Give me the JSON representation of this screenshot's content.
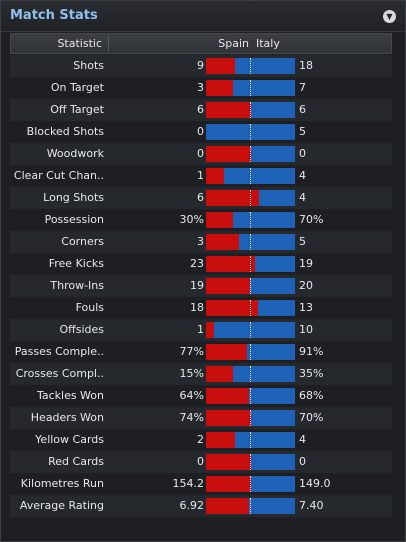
{
  "panel": {
    "title": "Match Stats"
  },
  "columns": {
    "statistic": "Statistic",
    "home": "Spain",
    "away": "Italy"
  },
  "colors": {
    "home": "#c80d0d",
    "away": "#1d62b7",
    "title": "#8fc0ef"
  },
  "stats": [
    {
      "label": "Shots",
      "home": "9",
      "away": "18",
      "home_share": 0.33
    },
    {
      "label": "On Target",
      "home": "3",
      "away": "7",
      "home_share": 0.3
    },
    {
      "label": "Off Target",
      "home": "6",
      "away": "6",
      "home_share": 0.5
    },
    {
      "label": "Blocked Shots",
      "home": "0",
      "away": "5",
      "home_share": 0.0
    },
    {
      "label": "Woodwork",
      "home": "0",
      "away": "0",
      "home_share": 0.5
    },
    {
      "label": "Clear Cut Chan..",
      "home": "1",
      "away": "4",
      "home_share": 0.2
    },
    {
      "label": "Long Shots",
      "home": "6",
      "away": "4",
      "home_share": 0.6
    },
    {
      "label": "Possession",
      "home": "30%",
      "away": "70%",
      "home_share": 0.3
    },
    {
      "label": "Corners",
      "home": "3",
      "away": "5",
      "home_share": 0.375
    },
    {
      "label": "Free Kicks",
      "home": "23",
      "away": "19",
      "home_share": 0.55
    },
    {
      "label": "Throw-Ins",
      "home": "19",
      "away": "20",
      "home_share": 0.49
    },
    {
      "label": "Fouls",
      "home": "18",
      "away": "13",
      "home_share": 0.58
    },
    {
      "label": "Offsides",
      "home": "1",
      "away": "10",
      "home_share": 0.09
    },
    {
      "label": "Passes Comple..",
      "home": "77%",
      "away": "91%",
      "home_share": 0.46
    },
    {
      "label": "Crosses Compl..",
      "home": "15%",
      "away": "35%",
      "home_share": 0.3
    },
    {
      "label": "Tackles Won",
      "home": "64%",
      "away": "68%",
      "home_share": 0.485
    },
    {
      "label": "Headers Won",
      "home": "74%",
      "away": "70%",
      "home_share": 0.51
    },
    {
      "label": "Yellow Cards",
      "home": "2",
      "away": "4",
      "home_share": 0.33
    },
    {
      "label": "Red Cards",
      "home": "0",
      "away": "0",
      "home_share": 0.5
    },
    {
      "label": "Kilometres Run",
      "home": "154.2",
      "away": "149.0",
      "home_share": 0.51
    },
    {
      "label": "Average Rating",
      "home": "6.92",
      "away": "7.40",
      "home_share": 0.48
    }
  ]
}
